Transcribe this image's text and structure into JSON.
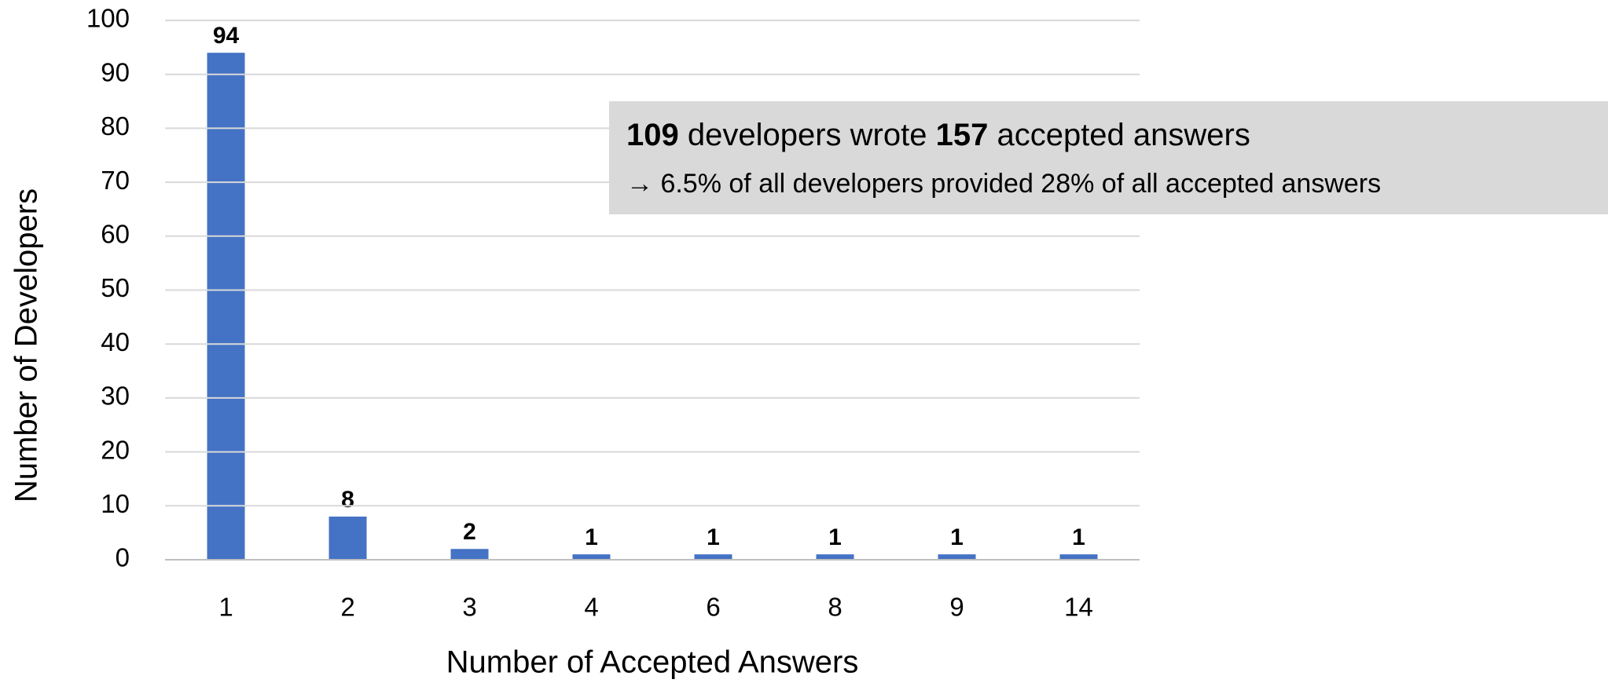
{
  "chart_data": {
    "type": "bar",
    "x_label": "Number of Accepted Answers",
    "y_label": "Number of Developers",
    "categories": [
      "1",
      "2",
      "3",
      "4",
      "6",
      "8",
      "9",
      "14"
    ],
    "values": [
      94,
      8,
      2,
      1,
      1,
      1,
      1,
      1
    ],
    "color": "#4472c4",
    "ylim": [
      0,
      100
    ],
    "yticks": [
      0,
      10,
      20,
      30,
      40,
      50,
      60,
      70,
      80,
      90,
      100
    ],
    "grid": true,
    "annotation": {
      "line1": [
        "109",
        " developers wrote ",
        "157",
        " accepted answers"
      ],
      "line2": "→ 6.5% of all developers provided 28% of all accepted answers"
    }
  }
}
